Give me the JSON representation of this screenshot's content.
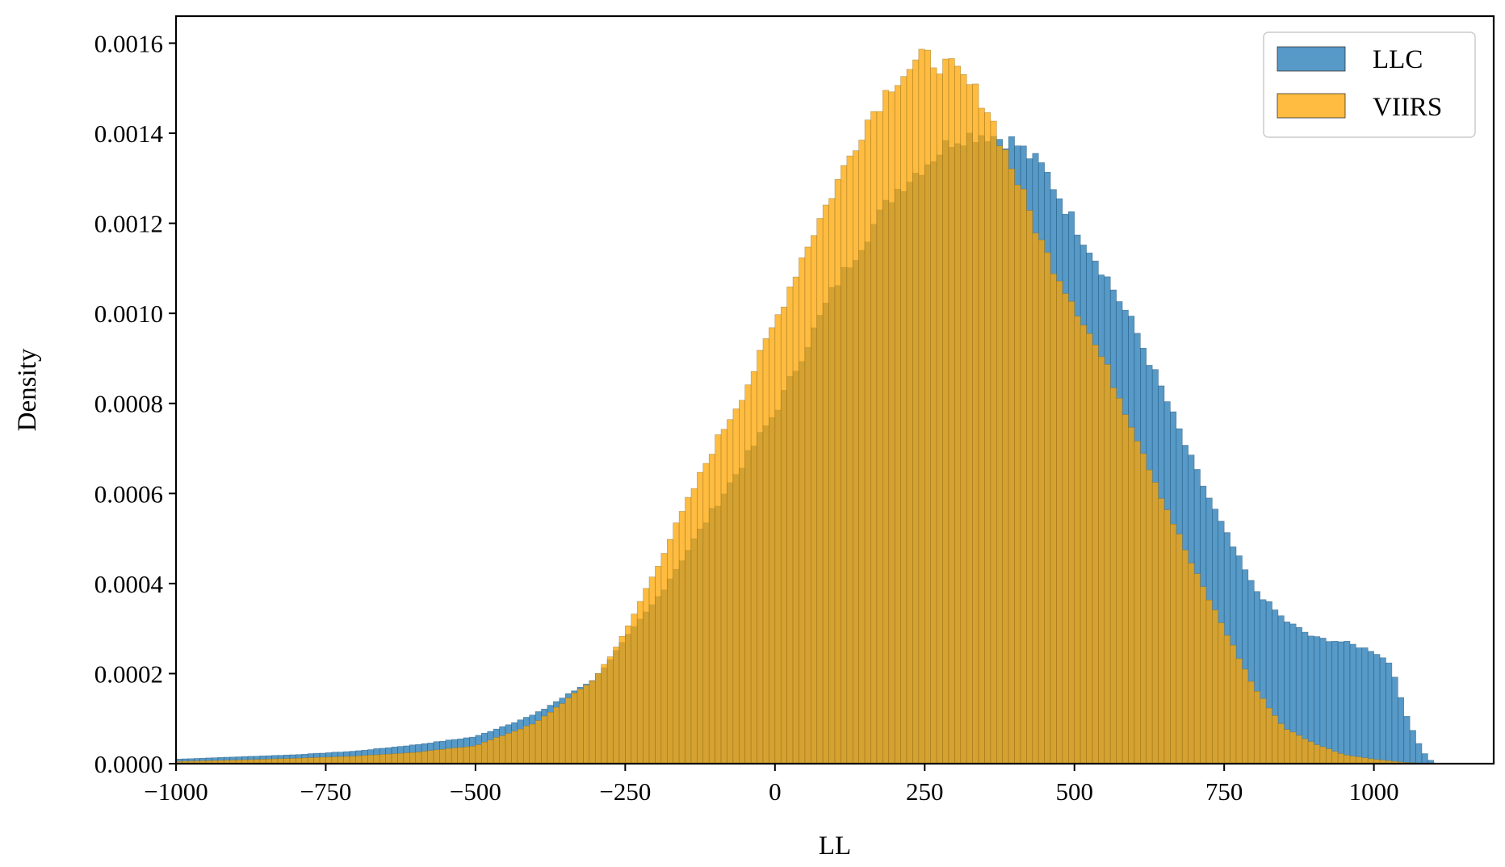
{
  "chart_data": {
    "type": "histogram",
    "xlabel": "LL",
    "ylabel": "Density",
    "xlim": [
      -1000,
      1200
    ],
    "ylim": [
      0,
      0.00166
    ],
    "xticks": [
      -1000,
      -750,
      -500,
      -250,
      0,
      250,
      500,
      750,
      1000
    ],
    "xtick_labels": [
      "−1000",
      "−750",
      "−500",
      "−250",
      "0",
      "250",
      "500",
      "750",
      "1000"
    ],
    "yticks": [
      0,
      0.0002,
      0.0004,
      0.0006,
      0.0008,
      0.001,
      0.0012,
      0.0014,
      0.0016
    ],
    "ytick_labels": [
      "0.0000",
      "0.0002",
      "0.0004",
      "0.0006",
      "0.0008",
      "0.0010",
      "0.0012",
      "0.0014",
      "0.0016"
    ],
    "grid": false,
    "legend_position": "top-right",
    "bin_width": 10,
    "series": [
      {
        "name": "LLC",
        "color": "#1f77b4",
        "range": [
          -1000,
          1100
        ],
        "profile": [
          [
            -1000,
            1e-05
          ],
          [
            -900,
            1.5e-05
          ],
          [
            -800,
            2e-05
          ],
          [
            -700,
            2.8e-05
          ],
          [
            -600,
            4.2e-05
          ],
          [
            -500,
            6e-05
          ],
          [
            -400,
            0.00011
          ],
          [
            -300,
            0.00019
          ],
          [
            -200,
            0.00036
          ],
          [
            -100,
            0.00057
          ],
          [
            0,
            0.00078
          ],
          [
            100,
            0.00106
          ],
          [
            200,
            0.00127
          ],
          [
            300,
            0.00139
          ],
          [
            350,
            0.0014
          ],
          [
            400,
            0.00138
          ],
          [
            450,
            0.00132
          ],
          [
            500,
            0.0012
          ],
          [
            550,
            0.00109
          ],
          [
            600,
            0.00097
          ],
          [
            650,
            0.00082
          ],
          [
            700,
            0.00066
          ],
          [
            750,
            0.00052
          ],
          [
            800,
            0.00039
          ],
          [
            850,
            0.00032
          ],
          [
            900,
            0.00028
          ],
          [
            950,
            0.00027
          ],
          [
            1000,
            0.00025
          ],
          [
            1030,
            0.00022
          ],
          [
            1050,
            0.00012
          ],
          [
            1080,
            3e-05
          ],
          [
            1100,
            0.0
          ]
        ]
      },
      {
        "name": "VIIRS",
        "color": "#ffa500",
        "range": [
          -1000,
          1100
        ],
        "profile": [
          [
            -1000,
            5e-06
          ],
          [
            -900,
            8e-06
          ],
          [
            -800,
            1.2e-05
          ],
          [
            -700,
            1.7e-05
          ],
          [
            -600,
            2.5e-05
          ],
          [
            -500,
            4e-05
          ],
          [
            -400,
            9e-05
          ],
          [
            -300,
            0.00019
          ],
          [
            -250,
            0.00029
          ],
          [
            -200,
            0.00043
          ],
          [
            -150,
            0.00057
          ],
          [
            -100,
            0.00071
          ],
          [
            -50,
            0.00083
          ],
          [
            0,
            0.00098
          ],
          [
            50,
            0.00114
          ],
          [
            100,
            0.00128
          ],
          [
            150,
            0.00142
          ],
          [
            200,
            0.00152
          ],
          [
            250,
            0.00157
          ],
          [
            300,
            0.00154
          ],
          [
            350,
            0.00147
          ],
          [
            400,
            0.00131
          ],
          [
            450,
            0.00114
          ],
          [
            500,
            0.00102
          ],
          [
            550,
            0.00089
          ],
          [
            600,
            0.00074
          ],
          [
            650,
            0.00058
          ],
          [
            700,
            0.00043
          ],
          [
            750,
            0.0003
          ],
          [
            800,
            0.00017
          ],
          [
            850,
            8e-05
          ],
          [
            900,
            4.5e-05
          ],
          [
            950,
            2e-05
          ],
          [
            1000,
            1e-05
          ],
          [
            1050,
            3e-06
          ],
          [
            1100,
            0.0
          ]
        ]
      }
    ]
  }
}
